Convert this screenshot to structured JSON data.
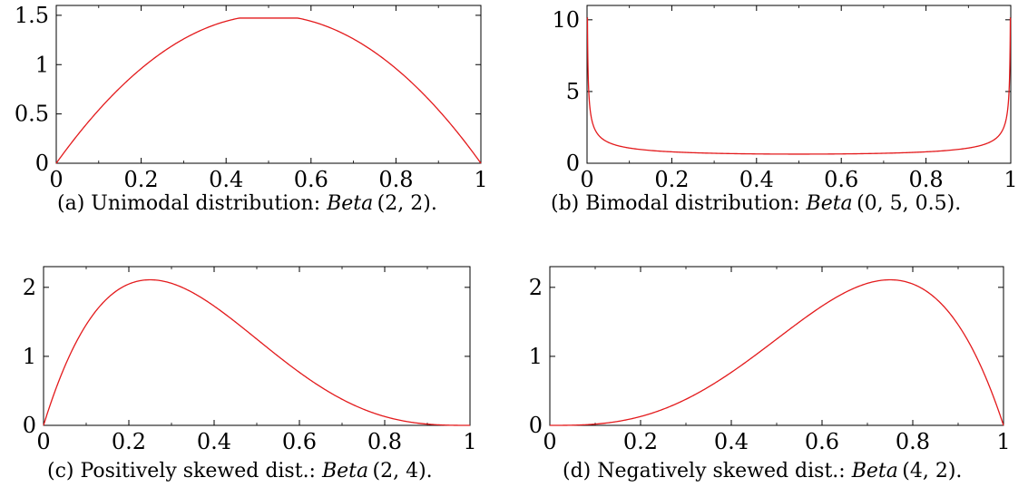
{
  "colors": {
    "curve": "#e31a1c",
    "axis": "#000000"
  },
  "chart_data": [
    {
      "type": "line",
      "caption_prefix": "(a) Unimodal distribution: ",
      "caption_math": "Beta",
      "caption_args": "(2, 2).",
      "alpha": 2,
      "beta": 2,
      "xlim": [
        0,
        1
      ],
      "ylim": [
        0,
        1.6
      ],
      "xticks": [
        0,
        0.2,
        0.4,
        0.6,
        0.8,
        1
      ],
      "xticklabels": [
        "0",
        "0.2",
        "0.4",
        "0.6",
        "0.8",
        "1"
      ],
      "yticks": [
        0,
        0.5,
        1,
        1.5
      ],
      "yticklabels": [
        "0",
        "0.5",
        "1",
        "1.5"
      ],
      "series": [
        {
          "x": [
            0,
            0.1,
            0.2,
            0.3,
            0.4,
            0.5,
            0.6,
            0.7,
            0.8,
            0.9,
            1
          ],
          "y": [
            0,
            0.54,
            0.96,
            1.26,
            1.44,
            1.5,
            1.44,
            1.26,
            0.96,
            0.54,
            0
          ]
        }
      ]
    },
    {
      "type": "line",
      "caption_prefix": "(b) Bimodal distribution: ",
      "caption_math": "Beta",
      "caption_args": "(0, 5, 0.5).",
      "alpha": 0.5,
      "beta": 0.5,
      "xlim": [
        0,
        1
      ],
      "ylim": [
        0,
        11
      ],
      "xticks": [
        0,
        0.2,
        0.4,
        0.6,
        0.8,
        1
      ],
      "xticklabels": [
        "0",
        "0.2",
        "0.4",
        "0.6",
        "0.8",
        "1"
      ],
      "yticks": [
        0,
        5,
        10
      ],
      "yticklabels": [
        "0",
        "5",
        "10"
      ],
      "series": [
        {
          "x": [
            0.001,
            0.01,
            0.05,
            0.1,
            0.3,
            0.5,
            0.7,
            0.9,
            0.95,
            0.99,
            0.999
          ],
          "y": [
            10.07,
            3.2,
            1.46,
            1.06,
            0.69,
            0.64,
            0.69,
            1.06,
            1.46,
            3.2,
            10.07
          ]
        }
      ]
    },
    {
      "type": "line",
      "caption_prefix": "(c) Positively skewed dist.: ",
      "caption_math": "Beta",
      "caption_args": "(2, 4).",
      "alpha": 2,
      "beta": 4,
      "xlim": [
        0,
        1
      ],
      "ylim": [
        0,
        2.3
      ],
      "xticks": [
        0,
        0.2,
        0.4,
        0.6,
        0.8,
        1
      ],
      "xticklabels": [
        "0",
        "0.2",
        "0.4",
        "0.6",
        "0.8",
        "1"
      ],
      "yticks": [
        0,
        1,
        2
      ],
      "yticklabels": [
        "0",
        "1",
        "2"
      ],
      "series": [
        {
          "x": [
            0,
            0.1,
            0.2,
            0.25,
            0.3,
            0.4,
            0.5,
            0.6,
            0.7,
            0.8,
            0.9,
            1
          ],
          "y": [
            0,
            1.46,
            2.05,
            2.11,
            2.06,
            1.73,
            1.25,
            0.77,
            0.38,
            0.13,
            0.02,
            0
          ]
        }
      ]
    },
    {
      "type": "line",
      "caption_prefix": "(d) Negatively skewed dist.: ",
      "caption_math": "Beta",
      "caption_args": "(4, 2).",
      "alpha": 4,
      "beta": 2,
      "xlim": [
        0,
        1
      ],
      "ylim": [
        0,
        2.3
      ],
      "xticks": [
        0,
        0.2,
        0.4,
        0.6,
        0.8,
        1
      ],
      "xticklabels": [
        "0",
        "0.2",
        "0.4",
        "0.6",
        "0.8",
        "1"
      ],
      "yticks": [
        0,
        1,
        2
      ],
      "yticklabels": [
        "0",
        "1",
        "2"
      ],
      "series": [
        {
          "x": [
            0,
            0.1,
            0.2,
            0.3,
            0.4,
            0.5,
            0.6,
            0.7,
            0.75,
            0.8,
            0.9,
            1
          ],
          "y": [
            0,
            0.02,
            0.13,
            0.38,
            0.77,
            1.25,
            1.73,
            2.06,
            2.11,
            2.05,
            1.46,
            0
          ]
        }
      ]
    }
  ]
}
